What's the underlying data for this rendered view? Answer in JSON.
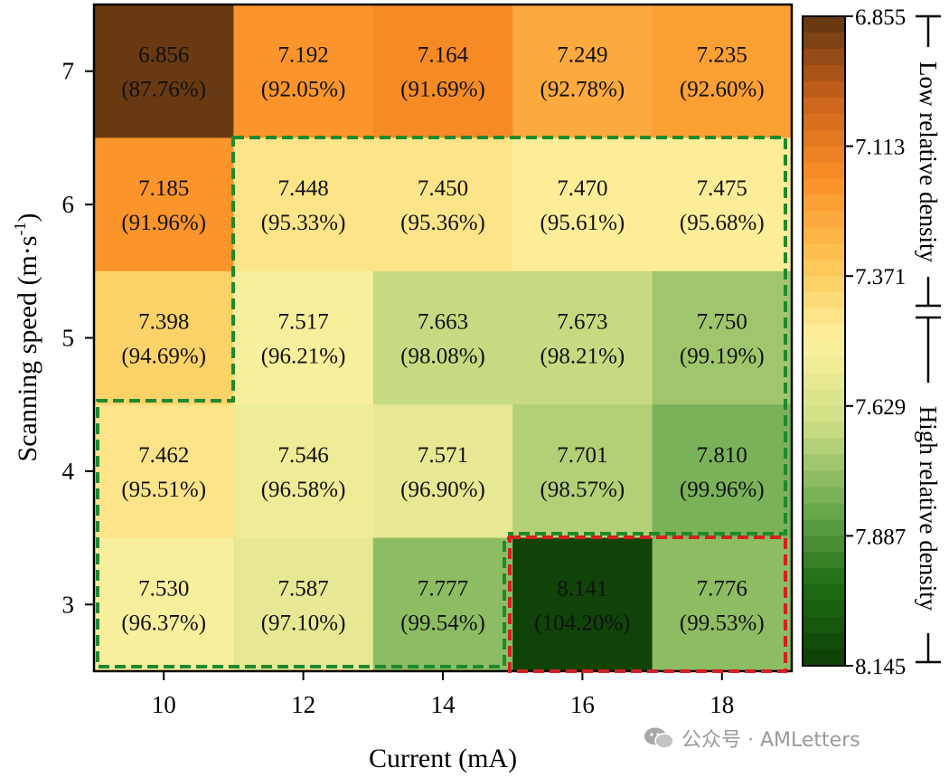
{
  "chart_data": {
    "type": "heatmap",
    "xlabel": "Current (mA)",
    "ylabel_main": "Scanning speed (m·s",
    "ylabel_sup": "-1",
    "ylabel_end": ")",
    "x_categories": [
      "10",
      "12",
      "14",
      "16",
      "18"
    ],
    "y_categories": [
      "7",
      "6",
      "5",
      "4",
      "3"
    ],
    "cells": [
      [
        {
          "value": 6.856,
          "label": "6.856",
          "pct": "(87.76%)"
        },
        {
          "value": 7.192,
          "label": "7.192",
          "pct": "(92.05%)"
        },
        {
          "value": 7.164,
          "label": "7.164",
          "pct": "(91.69%)"
        },
        {
          "value": 7.249,
          "label": "7.249",
          "pct": "(92.78%)"
        },
        {
          "value": 7.235,
          "label": "7.235",
          "pct": "(92.60%)"
        }
      ],
      [
        {
          "value": 7.185,
          "label": "7.185",
          "pct": "(91.96%)"
        },
        {
          "value": 7.448,
          "label": "7.448",
          "pct": "(95.33%)"
        },
        {
          "value": 7.45,
          "label": "7.450",
          "pct": "(95.36%)"
        },
        {
          "value": 7.47,
          "label": "7.470",
          "pct": "(95.61%)"
        },
        {
          "value": 7.475,
          "label": "7.475",
          "pct": "(95.68%)"
        }
      ],
      [
        {
          "value": 7.398,
          "label": "7.398",
          "pct": "(94.69%)"
        },
        {
          "value": 7.517,
          "label": "7.517",
          "pct": "(96.21%)"
        },
        {
          "value": 7.663,
          "label": "7.663",
          "pct": "(98.08%)"
        },
        {
          "value": 7.673,
          "label": "7.673",
          "pct": "(98.21%)"
        },
        {
          "value": 7.75,
          "label": "7.750",
          "pct": "(99.19%)"
        }
      ],
      [
        {
          "value": 7.462,
          "label": "7.462",
          "pct": "(95.51%)"
        },
        {
          "value": 7.546,
          "label": "7.546",
          "pct": "(96.58%)"
        },
        {
          "value": 7.571,
          "label": "7.571",
          "pct": "(96.90%)"
        },
        {
          "value": 7.701,
          "label": "7.701",
          "pct": "(98.57%)"
        },
        {
          "value": 7.81,
          "label": "7.810",
          "pct": "(99.96%)"
        }
      ],
      [
        {
          "value": 7.53,
          "label": "7.530",
          "pct": "(96.37%)"
        },
        {
          "value": 7.587,
          "label": "7.587",
          "pct": "(97.10%)"
        },
        {
          "value": 7.777,
          "label": "7.777",
          "pct": "(99.54%)"
        },
        {
          "value": 8.141,
          "label": "8.141",
          "pct": "(104.20%)"
        },
        {
          "value": 7.776,
          "label": "7.776",
          "pct": "(99.53%)"
        }
      ]
    ],
    "colorbar": {
      "min": 6.855,
      "max": 8.145,
      "ticks": [
        "6.855",
        "7.113",
        "7.371",
        "7.629",
        "7.887",
        "8.145"
      ],
      "bands": 40,
      "palette": [
        "#5e3410",
        "#c9611a",
        "#fb9027",
        "#fdc452",
        "#fdf1a0",
        "#cfdf86",
        "#71ad54",
        "#1e6e12",
        "#0d3e07"
      ]
    },
    "annotations": {
      "low_label": "Low relative density",
      "high_label": "High relative density",
      "high_region_color": "#1f8a2c",
      "best_region_color": "#d42020"
    }
  },
  "watermark": {
    "text": "公众号 · AMLetters"
  }
}
